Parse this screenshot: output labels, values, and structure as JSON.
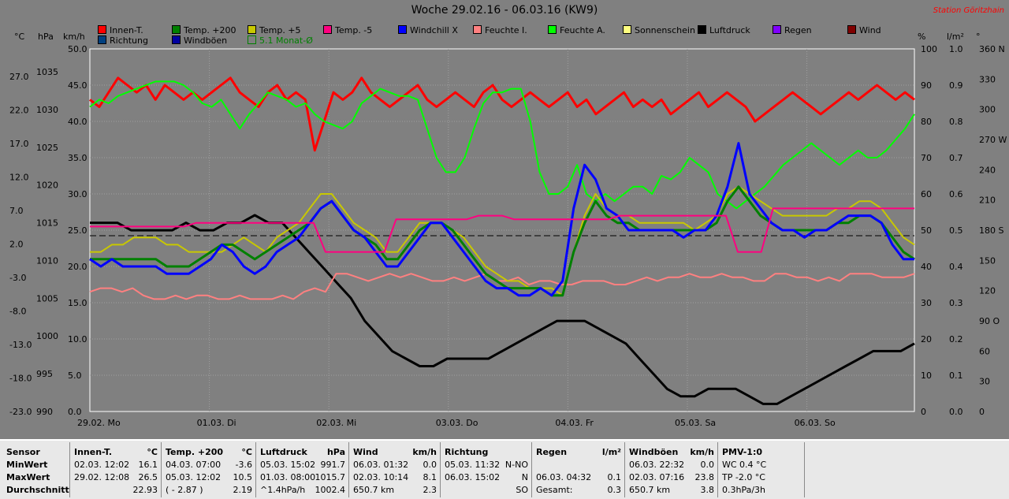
{
  "title": "Woche 29.02.16 - 06.03.16 (KW9)",
  "station": "Station Göritzhain",
  "legend": [
    {
      "label": "Innen-T.",
      "color": "#ff0000"
    },
    {
      "label": "Temp. +200",
      "color": "#008000"
    },
    {
      "label": "Temp. +5",
      "color": "#c8c800"
    },
    {
      "label": "Temp. -5",
      "color": "#ff0080"
    },
    {
      "label": "Windchill X",
      "color": "#0000ff"
    },
    {
      "label": "Feuchte I.",
      "color": "#ff8080"
    },
    {
      "label": "Feuchte A.",
      "color": "#00ff00"
    },
    {
      "label": "Sonnenschein",
      "color": "#ffff80"
    },
    {
      "label": "Luftdruck",
      "color": "#000000"
    },
    {
      "label": "Regen",
      "color": "#8000ff"
    },
    {
      "label": "Wind",
      "color": "#800000"
    },
    {
      "label": "Richtung",
      "color": "#004080"
    },
    {
      "label": "Windböen",
      "color": "#0000a0"
    },
    {
      "label": "5.1 Monat-Ø",
      "color": "#008000"
    }
  ],
  "units": {
    "celsius": "°C",
    "hpa": "hPa",
    "kmh": "km/h",
    "percent": "%",
    "lm2": "l/m²",
    "deg": "°"
  },
  "chart_data": {
    "type": "line",
    "x_labels": [
      "29.02.  Mo",
      "01.03.  Di",
      "02.03.  Mi",
      "03.03.  Do",
      "04.03.  Fr",
      "05.03.  Sa",
      "06.03.  So"
    ],
    "axes": {
      "celsius": [
        "27.0",
        "22.0",
        "17.0",
        "12.0",
        "7.0",
        "2.0",
        "-3.0",
        "-8.0",
        "-13.0",
        "-18.0",
        "-23.0"
      ],
      "hpa": [
        "1035",
        "1030",
        "1025",
        "1020",
        "1015",
        "1010",
        "1005",
        "1000",
        "995",
        "990"
      ],
      "kmh": [
        "50.0",
        "45.0",
        "40.0",
        "35.0",
        "30.0",
        "25.0",
        "20.0",
        "15.0",
        "10.0",
        "5.0",
        "0.0"
      ],
      "percent": [
        "100",
        "90",
        "80",
        "70",
        "60",
        "50",
        "40",
        "30",
        "20",
        "10",
        "0"
      ],
      "lm2": [
        "1.0",
        "0.9",
        "0.8",
        "0.7",
        "0.6",
        "0.5",
        "0.4",
        "0.3",
        "0.2",
        "0.1",
        "0.0"
      ],
      "deg": [
        "360 N",
        "330",
        "300",
        "270 W",
        "240",
        "210",
        "180 S",
        "150",
        "120",
        "90 O",
        "60",
        "30",
        "0"
      ]
    },
    "kmh_range": [
      0,
      50
    ],
    "series": [
      {
        "name": "Innen-T.",
        "color": "#ff0000",
        "width": 3,
        "values": [
          43,
          42,
          44,
          46,
          45,
          44,
          45,
          43,
          45,
          44,
          43,
          44,
          43,
          44,
          45,
          46,
          44,
          43,
          42,
          44,
          45,
          43,
          44,
          43,
          36,
          40,
          44,
          43,
          44,
          46,
          44,
          43,
          42,
          43,
          44,
          45,
          43,
          42,
          43,
          44,
          43,
          42,
          44,
          45,
          43,
          42,
          43,
          44,
          43,
          42,
          43,
          44,
          42,
          43,
          41,
          42,
          43,
          44,
          42,
          43,
          42,
          43,
          41,
          42,
          43,
          44,
          42,
          43,
          44,
          43,
          42,
          40,
          41,
          42,
          43,
          44,
          43,
          42,
          41,
          42,
          43,
          44,
          43,
          44,
          45,
          44,
          43,
          44,
          43
        ]
      },
      {
        "name": "Feuchte A.",
        "color": "#00ff00",
        "width": 2,
        "values": [
          84,
          86,
          85,
          87,
          88,
          89,
          90,
          91,
          91,
          91,
          90,
          88,
          85,
          84,
          86,
          82,
          78,
          82,
          85,
          88,
          87,
          86,
          84,
          85,
          82,
          80,
          79,
          78,
          80,
          85,
          87,
          89,
          88,
          87,
          87,
          86,
          78,
          70,
          66,
          66,
          70,
          78,
          85,
          88,
          88,
          89,
          89,
          80,
          66,
          60,
          60,
          62,
          68,
          60,
          58,
          60,
          58,
          60,
          62,
          62,
          60,
          65,
          64,
          66,
          70,
          68,
          66,
          60,
          58,
          56,
          58,
          60,
          62,
          65,
          68,
          70,
          72,
          74,
          72,
          70,
          68,
          70,
          72,
          70,
          70,
          72,
          75,
          78,
          82
        ]
      },
      {
        "name": "Luftdruck",
        "color": "#000000",
        "width": 3,
        "values": [
          1015,
          1015,
          1015,
          1014,
          1014,
          1014,
          1014,
          1015,
          1014,
          1014,
          1015,
          1015,
          1016,
          1015,
          1015,
          1013,
          1011,
          1009,
          1007,
          1005,
          1002,
          1000,
          998,
          997,
          996,
          996,
          997,
          997,
          997,
          997,
          998,
          999,
          1000,
          1001,
          1002,
          1002,
          1002,
          1001,
          1000,
          999,
          997,
          995,
          993,
          992,
          992,
          993,
          993,
          993,
          992,
          991,
          991,
          992,
          993,
          994,
          995,
          996,
          997,
          998,
          998,
          998,
          999
        ]
      },
      {
        "name": "Feuchte I.",
        "color": "#ff8080",
        "width": 2,
        "values": [
          33,
          34,
          34,
          33,
          34,
          32,
          31,
          31,
          32,
          31,
          32,
          32,
          31,
          31,
          32,
          31,
          31,
          31,
          32,
          31,
          33,
          34,
          33,
          38,
          38,
          37,
          36,
          37,
          38,
          37,
          38,
          37,
          36,
          36,
          37,
          36,
          37,
          38,
          36,
          36,
          37,
          35,
          36,
          36,
          35,
          35,
          36,
          36,
          36,
          35,
          35,
          36,
          37,
          36,
          37,
          37,
          38,
          37,
          37,
          38,
          37,
          37,
          36,
          36,
          38,
          38,
          37,
          37,
          36,
          37,
          36,
          38,
          38,
          38,
          37,
          37,
          37,
          38
        ]
      },
      {
        "name": "Temp. +5",
        "color": "#c8c800",
        "width": 2,
        "values": [
          22,
          22,
          23,
          23,
          24,
          24,
          24,
          23,
          23,
          22,
          22,
          22,
          22,
          23,
          24,
          23,
          22,
          24,
          25,
          26,
          28,
          30,
          30,
          28,
          26,
          25,
          24,
          22,
          22,
          24,
          26,
          26,
          26,
          25,
          24,
          22,
          20,
          19,
          18,
          18,
          17,
          17,
          17,
          16,
          22,
          27,
          30,
          28,
          27,
          27,
          26,
          26,
          26,
          26,
          26,
          25,
          26,
          27,
          30,
          31,
          30,
          29,
          28,
          27,
          27,
          27,
          27,
          27,
          28,
          28,
          29,
          29,
          28,
          26,
          24,
          23
        ]
      },
      {
        "name": "Temp. +200",
        "color": "#008000",
        "width": 3,
        "values": [
          21,
          21,
          21,
          21,
          21,
          21,
          21,
          20,
          20,
          20,
          21,
          22,
          23,
          23,
          22,
          21,
          22,
          23,
          24,
          25,
          26,
          28,
          29,
          27,
          25,
          24,
          23,
          21,
          21,
          23,
          25,
          26,
          26,
          25,
          23,
          21,
          19,
          18,
          17,
          17,
          17,
          17,
          16,
          16,
          22,
          26,
          29,
          27,
          26,
          26,
          25,
          25,
          25,
          25,
          25,
          25,
          25,
          26,
          29,
          31,
          29,
          27,
          26,
          25,
          25,
          25,
          25,
          25,
          26,
          26,
          27,
          27,
          26,
          24,
          22,
          21
        ]
      },
      {
        "name": "Windchill X",
        "color": "#0000ff",
        "width": 3,
        "values": [
          21,
          20,
          21,
          20,
          20,
          20,
          20,
          19,
          19,
          19,
          20,
          21,
          23,
          22,
          20,
          19,
          20,
          22,
          23,
          24,
          26,
          28,
          29,
          27,
          25,
          24,
          22,
          20,
          20,
          22,
          24,
          26,
          26,
          24,
          22,
          20,
          18,
          17,
          17,
          16,
          16,
          17,
          16,
          18,
          28,
          34,
          32,
          28,
          27,
          25,
          25,
          25,
          25,
          25,
          24,
          25,
          25,
          27,
          31,
          37,
          30,
          28,
          26,
          25,
          25,
          24,
          25,
          25,
          26,
          27,
          27,
          27,
          26,
          23,
          21,
          21
        ]
      },
      {
        "name": "Temp. -5",
        "color": "#ff0080",
        "width": 2,
        "values": [
          25.5,
          25.5,
          25.5,
          25.5,
          25.5,
          25.5,
          25.5,
          25.5,
          25.5,
          26,
          26,
          26,
          26,
          26,
          26,
          26,
          26,
          26,
          26,
          26,
          22,
          22,
          22,
          22,
          22,
          22,
          26.5,
          26.5,
          26.5,
          26.5,
          26.5,
          26.5,
          26.5,
          27,
          27,
          27,
          26.5,
          26.5,
          26.5,
          26.5,
          26.5,
          26.5,
          26.5,
          26.5,
          26.5,
          27,
          27,
          27,
          27,
          27,
          27,
          27,
          27,
          27,
          27,
          22,
          22,
          22,
          28,
          28,
          28,
          28,
          28,
          28,
          28,
          28,
          28,
          28,
          28,
          28,
          28
        ]
      }
    ]
  },
  "stats": {
    "sensor": {
      "header": "Sensor",
      "rows": [
        "MinWert",
        "MaxWert",
        "Durchschnitt"
      ]
    },
    "innen": {
      "header": "Innen-T.",
      "unit": "°C",
      "rows": [
        [
          "02.03.  12:02",
          "16.1"
        ],
        [
          "29.02.  12:08",
          "26.5"
        ],
        [
          "",
          "22.93"
        ]
      ]
    },
    "temp200": {
      "header": "Temp. +200",
      "unit": "°C",
      "rows": [
        [
          "04.03.  07:00",
          "-3.6"
        ],
        [
          "05.03.  12:02",
          "10.5"
        ],
        [
          "( - 2.87 )",
          "2.19"
        ]
      ]
    },
    "luftdruck": {
      "header": "Luftdruck",
      "unit": "hPa",
      "rows": [
        [
          "05.03.  15:02",
          "991.7"
        ],
        [
          "01.03.  08:00",
          "1015.7"
        ],
        [
          "^1.4hPa/h",
          "1002.4"
        ]
      ]
    },
    "wind": {
      "header": "Wind",
      "unit": "km/h",
      "rows": [
        [
          "06.03.  01:32",
          "0.0"
        ],
        [
          "02.03.  10:14",
          "8.1"
        ],
        [
          "650.7 km",
          "2.3"
        ]
      ]
    },
    "richtung": {
      "header": "Richtung",
      "unit": "",
      "rows": [
        [
          "05.03.  11:32",
          "N-NO"
        ],
        [
          "06.03.  15:02",
          "N"
        ],
        [
          "",
          "SO"
        ]
      ]
    },
    "regen": {
      "header": "Regen",
      "unit": "l/m²",
      "rows": [
        [
          "",
          ""
        ],
        [
          "06.03.  04:32",
          "0.1"
        ],
        [
          "Gesamt:",
          "0.3"
        ]
      ]
    },
    "windboeen": {
      "header": "Windböen",
      "unit": "km/h",
      "rows": [
        [
          "06.03.  22:32",
          "0.0"
        ],
        [
          "02.03.  07:16",
          "23.8"
        ],
        [
          "650.7 km",
          "3.8"
        ]
      ]
    },
    "pmv": {
      "header": "PMV-1:0",
      "unit": "",
      "rows": [
        [
          "WC 0.4 °C",
          ""
        ],
        [
          "TP -2.0 °C",
          ""
        ],
        [
          "0.3hPa/3h",
          ""
        ]
      ]
    }
  }
}
